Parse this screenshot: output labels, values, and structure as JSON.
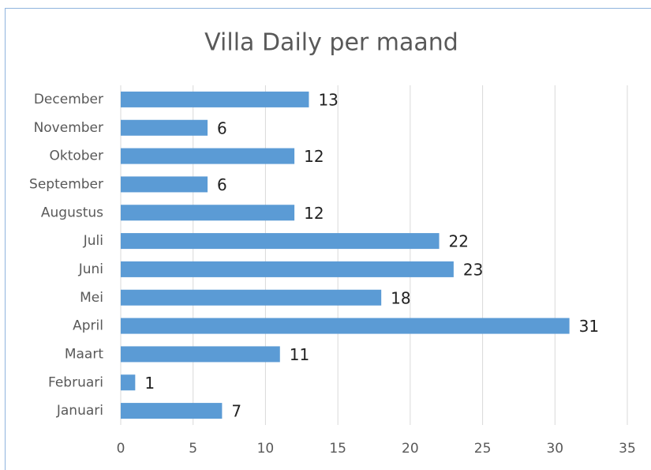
{
  "chart_data": {
    "type": "bar",
    "orientation": "horizontal",
    "title": "Villa Daily per maand",
    "categories": [
      "Januari",
      "Februari",
      "Maart",
      "April",
      "Mei",
      "Juni",
      "Juli",
      "Augustus",
      "September",
      "Oktober",
      "November",
      "December"
    ],
    "values": [
      7,
      1,
      11,
      31,
      18,
      23,
      22,
      12,
      6,
      12,
      6,
      13
    ],
    "color": "#5b9bd5",
    "xlim": [
      0,
      35
    ],
    "xticks": [
      0,
      5,
      10,
      15,
      20,
      25,
      30,
      35
    ],
    "grid": true
  }
}
